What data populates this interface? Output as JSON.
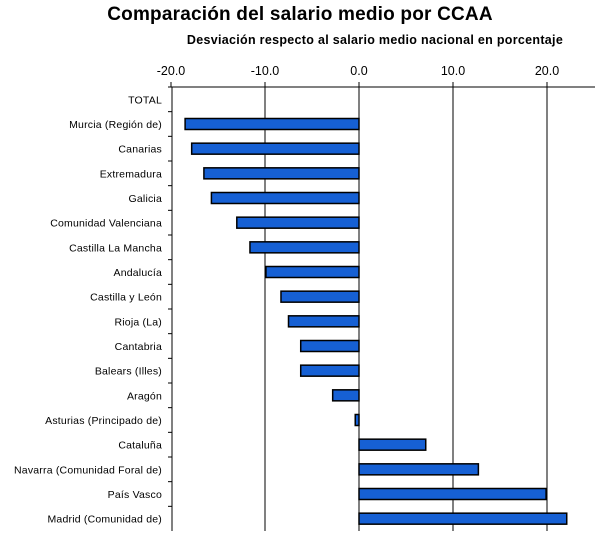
{
  "chart_data": {
    "type": "bar",
    "orientation": "horizontal",
    "title": "Comparación del salario medio por CCAA",
    "subtitle": "Desviación respecto al salario medio nacional en porcentaje",
    "xlim": [
      -20,
      25
    ],
    "x_ticks": [
      "-20.0",
      "-10.0",
      "0.0",
      "10.0",
      "20.0"
    ],
    "x_tick_values": [
      -20,
      -10,
      0,
      10,
      20
    ],
    "grid": "vertical",
    "categories": [
      "TOTAL",
      "Murcia (Región de)",
      "Canarias",
      "Extremadura",
      "Galicia",
      "Comunidad Valenciana",
      "Castilla La Mancha",
      "Andalucía",
      "Castilla y León",
      "Rioja (La)",
      "Cantabria",
      "Balears (Illes)",
      "Aragón",
      "Asturias (Principado de)",
      "Cataluña",
      "Navarra (Comunidad Foral de)",
      "País Vasco",
      "Madrid (Comunidad de)"
    ],
    "values": [
      0,
      -18.5,
      -17.8,
      -16.5,
      -15.7,
      -13.0,
      -11.6,
      -9.9,
      -8.3,
      -7.5,
      -6.2,
      -6.2,
      -2.8,
      -0.4,
      7.1,
      12.7,
      19.9,
      22.1
    ],
    "bar_color": "#1660D4"
  }
}
